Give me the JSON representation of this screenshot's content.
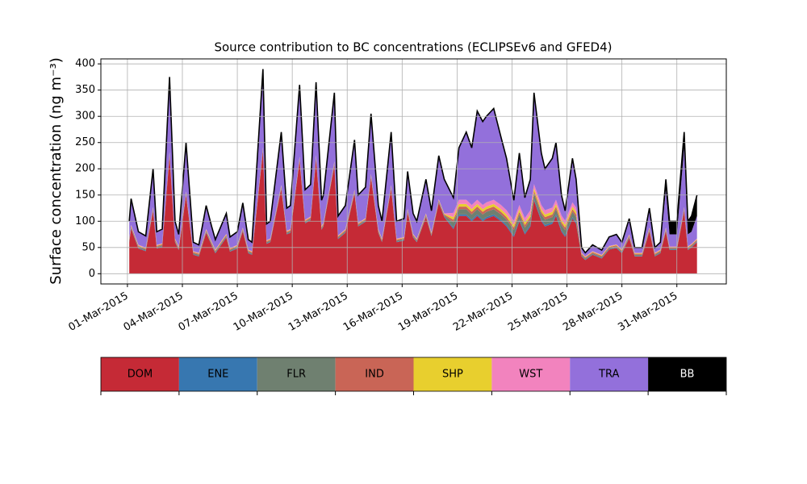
{
  "chart_data": {
    "type": "stackplot",
    "title": "Source contribution to BC concentrations (ECLIPSEv6 and GFED4)",
    "y_label": "Surface concentration (ng m⁻³)",
    "xlim": [
      -1.45,
      32.7
    ],
    "xticks": [
      {
        "value": 0,
        "label": "01-Mar-2015"
      },
      {
        "value": 3,
        "label": "04-Mar-2015"
      },
      {
        "value": 6,
        "label": "07-Mar-2015"
      },
      {
        "value": 9,
        "label": "10-Mar-2015"
      },
      {
        "value": 12,
        "label": "13-Mar-2015"
      },
      {
        "value": 15,
        "label": "16-Mar-2015"
      },
      {
        "value": 18,
        "label": "19-Mar-2015"
      },
      {
        "value": 21,
        "label": "22-Mar-2015"
      },
      {
        "value": 24,
        "label": "25-Mar-2015"
      },
      {
        "value": 27,
        "label": "28-Mar-2015"
      },
      {
        "value": 30,
        "label": "31-Mar-2015"
      }
    ],
    "ylim": [
      -19.5,
      409.5
    ],
    "yticks": [
      0,
      50,
      100,
      150,
      200,
      250,
      300,
      350,
      400
    ],
    "grid": true,
    "legend": "below",
    "x": [
      0.1,
      0.2,
      0.6,
      1.0,
      1.4,
      1.6,
      1.9,
      2.3,
      2.6,
      2.8,
      3.2,
      3.6,
      3.9,
      4.3,
      4.6,
      4.8,
      5.4,
      5.6,
      6.0,
      6.3,
      6.6,
      6.8,
      7.4,
      7.6,
      7.8,
      8.4,
      8.7,
      8.9,
      9.4,
      9.7,
      10.0,
      10.3,
      10.6,
      10.7,
      11.3,
      11.5,
      11.9,
      12.4,
      12.6,
      13.0,
      13.3,
      13.7,
      13.9,
      14.4,
      14.7,
      15.1,
      15.3,
      15.6,
      15.8,
      16.3,
      16.6,
      17.0,
      17.3,
      17.8,
      18.1,
      18.5,
      18.8,
      19.1,
      19.4,
      19.6,
      20.0,
      20.4,
      20.7,
      21.1,
      21.4,
      21.7,
      22.0,
      22.2,
      22.6,
      22.8,
      23.2,
      23.4,
      23.7,
      23.9,
      24.3,
      24.5,
      24.8,
      25.0,
      25.4,
      25.9,
      26.3,
      26.7,
      27.0,
      27.4,
      27.7,
      28.1,
      28.5,
      28.8,
      29.1,
      29.4,
      29.6,
      30.0,
      30.4,
      30.6,
      30.8,
      31.1
    ],
    "series": [
      {
        "name": "DOM",
        "color": "#c52a36",
        "values": [
          60,
          86,
          48,
          43,
          120,
          48,
          51,
          225,
          60,
          45,
          150,
          36,
          33,
          78,
          54,
          39,
          69,
          42,
          48,
          81,
          39,
          36,
          234,
          57,
          60,
          162,
          75,
          78,
          216,
          96,
          102,
          219,
          84,
          90,
          207,
          66,
          78,
          153,
          90,
          99,
          183,
          78,
          60,
          162,
          60,
          63,
          117,
          69,
          60,
          108,
          72,
          135,
          108,
          85,
          110,
          110,
          100,
          110,
          100,
          105,
          110,
          100,
          90,
          70,
          100,
          75,
          90,
          140,
          100,
          90,
          95,
          110,
          80,
          70,
          105,
          95,
          33,
          26,
          36,
          29,
          46,
          49,
          39,
          68,
          33,
          33,
          81,
          33,
          39,
          81,
          45,
          45,
          120,
          45,
          50,
          60
        ]
      },
      {
        "name": "ENE",
        "color": "#3777b0",
        "values": [
          1,
          1,
          1,
          1,
          1,
          1,
          1,
          1,
          1,
          1,
          1,
          1,
          1,
          1,
          1,
          1,
          1,
          1,
          1,
          1,
          1,
          1,
          1,
          1,
          1,
          1,
          1,
          1,
          1,
          1,
          1,
          1,
          1,
          1,
          1,
          1,
          1,
          1,
          1,
          1,
          1,
          1,
          1,
          1,
          1,
          1,
          1,
          1,
          1,
          1,
          1,
          1,
          1,
          3,
          3,
          3,
          3,
          3,
          3,
          3,
          3,
          3,
          3,
          3,
          3,
          3,
          3,
          3,
          3,
          3,
          3,
          3,
          3,
          3,
          3,
          3,
          1,
          1,
          1,
          1,
          1,
          1,
          1,
          1,
          1,
          1,
          1,
          1,
          1,
          1,
          1,
          1,
          1,
          1,
          1,
          1
        ]
      },
      {
        "name": "FLR",
        "color": "#6f8070",
        "values": [
          2,
          2,
          2,
          2,
          2,
          2,
          2,
          2,
          2,
          2,
          2,
          2,
          2,
          2,
          2,
          2,
          2,
          2,
          2,
          2,
          2,
          2,
          2,
          2,
          2,
          2,
          2,
          2,
          2,
          2,
          2,
          2,
          2,
          2,
          2,
          2,
          2,
          2,
          2,
          2,
          2,
          2,
          2,
          2,
          2,
          2,
          2,
          2,
          2,
          2,
          2,
          2,
          2,
          10,
          10,
          10,
          10,
          10,
          10,
          10,
          10,
          10,
          10,
          10,
          10,
          10,
          10,
          10,
          10,
          10,
          10,
          10,
          10,
          10,
          10,
          10,
          2,
          2,
          2,
          2,
          2,
          2,
          2,
          2,
          2,
          2,
          2,
          2,
          2,
          2,
          2,
          2,
          2,
          2,
          2,
          2
        ]
      },
      {
        "name": "IND",
        "color": "#c96556",
        "values": [
          2,
          2,
          2,
          2,
          2,
          2,
          2,
          2,
          2,
          2,
          2,
          2,
          2,
          2,
          2,
          2,
          2,
          2,
          2,
          2,
          2,
          2,
          2,
          2,
          2,
          2,
          2,
          2,
          2,
          2,
          2,
          2,
          2,
          2,
          2,
          2,
          2,
          2,
          2,
          2,
          2,
          2,
          2,
          2,
          2,
          2,
          2,
          2,
          2,
          2,
          2,
          2,
          2,
          5,
          5,
          5,
          5,
          5,
          5,
          5,
          5,
          5,
          5,
          5,
          5,
          5,
          5,
          5,
          5,
          5,
          5,
          5,
          5,
          5,
          5,
          5,
          2,
          2,
          2,
          2,
          2,
          2,
          2,
          2,
          2,
          2,
          2,
          2,
          2,
          2,
          2,
          2,
          2,
          2,
          2,
          2
        ]
      },
      {
        "name": "SHP",
        "color": "#e8cf2e",
        "values": [
          1,
          1,
          1,
          1,
          1,
          1,
          1,
          1,
          1,
          1,
          1,
          1,
          1,
          1,
          1,
          1,
          1,
          1,
          1,
          1,
          1,
          1,
          1,
          1,
          1,
          1,
          1,
          1,
          1,
          1,
          1,
          1,
          1,
          1,
          1,
          1,
          1,
          1,
          1,
          1,
          1,
          1,
          1,
          1,
          1,
          1,
          1,
          1,
          1,
          1,
          1,
          1,
          1,
          5,
          5,
          5,
          5,
          5,
          5,
          5,
          5,
          5,
          5,
          5,
          5,
          5,
          5,
          5,
          5,
          5,
          5,
          5,
          5,
          5,
          5,
          5,
          1,
          1,
          1,
          1,
          1,
          1,
          1,
          1,
          1,
          1,
          1,
          1,
          1,
          1,
          1,
          1,
          1,
          1,
          1,
          1
        ]
      },
      {
        "name": "WST",
        "color": "#f283be",
        "values": [
          1,
          1,
          1,
          1,
          1,
          1,
          1,
          1,
          1,
          1,
          1,
          1,
          1,
          1,
          1,
          1,
          1,
          1,
          1,
          1,
          1,
          1,
          1,
          1,
          1,
          1,
          1,
          1,
          1,
          1,
          1,
          1,
          1,
          1,
          1,
          1,
          1,
          1,
          1,
          1,
          1,
          1,
          1,
          1,
          1,
          1,
          1,
          1,
          1,
          1,
          1,
          1,
          1,
          8,
          8,
          8,
          8,
          8,
          8,
          8,
          8,
          8,
          8,
          8,
          8,
          8,
          8,
          8,
          8,
          8,
          8,
          8,
          8,
          8,
          8,
          8,
          1,
          1,
          1,
          1,
          1,
          1,
          1,
          1,
          1,
          1,
          1,
          1,
          1,
          1,
          1,
          1,
          1,
          1,
          1,
          1
        ]
      },
      {
        "name": "TRA",
        "color": "#9370db",
        "values": [
          33,
          50,
          25,
          22,
          73,
          25,
          27,
          143,
          33,
          23,
          93,
          17,
          15,
          45,
          29,
          19,
          39,
          21,
          25,
          47,
          19,
          17,
          149,
          31,
          33,
          101,
          43,
          45,
          137,
          57,
          61,
          139,
          49,
          53,
          131,
          37,
          45,
          95,
          53,
          59,
          115,
          45,
          33,
          101,
          33,
          35,
          71,
          39,
          33,
          65,
          41,
          83,
          65,
          29,
          99,
          129,
          109,
          169,
          159,
          164,
          174,
          129,
          99,
          39,
          99,
          39,
          59,
          174,
          99,
          79,
          94,
          109,
          39,
          19,
          84,
          54,
          10,
          7,
          12,
          9,
          17,
          19,
          14,
          30,
          10,
          10,
          37,
          10,
          14,
          72,
          23,
          23,
          113,
          23,
          23,
          43
        ]
      },
      {
        "name": "BB",
        "color": "#000000",
        "values": [
          0,
          0,
          0,
          0,
          0,
          0,
          0,
          0,
          0,
          0,
          0,
          0,
          0,
          0,
          0,
          0,
          0,
          0,
          0,
          0,
          0,
          0,
          0,
          0,
          0,
          0,
          0,
          0,
          0,
          0,
          0,
          0,
          0,
          0,
          0,
          0,
          0,
          0,
          0,
          0,
          0,
          0,
          0,
          0,
          0,
          0,
          0,
          0,
          0,
          0,
          0,
          0,
          0,
          0,
          0,
          0,
          0,
          0,
          0,
          0,
          0,
          0,
          0,
          0,
          0,
          0,
          0,
          0,
          0,
          0,
          0,
          0,
          0,
          0,
          0,
          0,
          0,
          0,
          0,
          0,
          0,
          0,
          0,
          0,
          0,
          0,
          0,
          0,
          0,
          20,
          25,
          25,
          30,
          25,
          30,
          40
        ]
      }
    ]
  }
}
